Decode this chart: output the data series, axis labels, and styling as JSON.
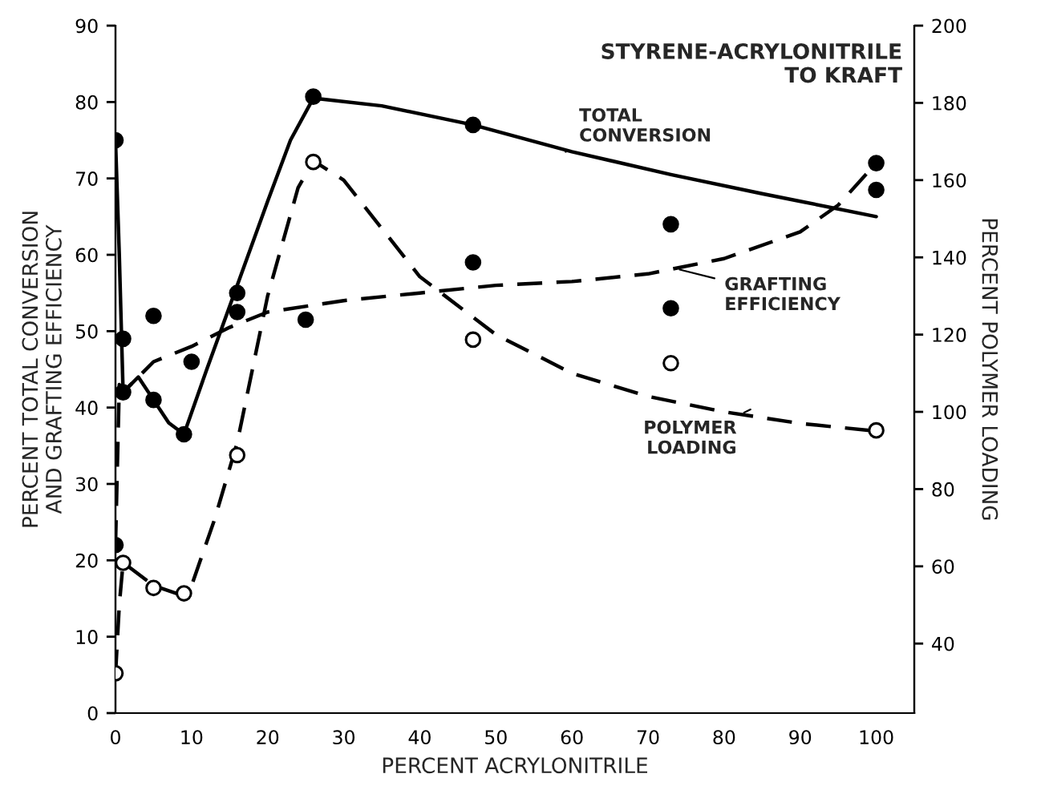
{
  "chart_data": {
    "type": "scatter",
    "title": "STYRENE-ACRYLONITRILE\nTO KRAFT",
    "xlabel": "PERCENT ACRYLONITRILE",
    "ylabel": "PERCENT TOTAL CONVERSION\nAND GRAFTING EFFICIENCY",
    "y2label": "PERCENT POLYMER LOADING",
    "xlim": [
      0,
      105
    ],
    "xticks": [
      0,
      10,
      20,
      30,
      40,
      50,
      60,
      70,
      80,
      90,
      100
    ],
    "ylim": [
      0,
      90
    ],
    "yticks": [
      0,
      10,
      20,
      30,
      40,
      50,
      60,
      70,
      80,
      90
    ],
    "y2lim": [
      22,
      200
    ],
    "y2ticks": [
      40,
      60,
      80,
      100,
      120,
      140,
      160,
      180,
      200
    ],
    "grid": false,
    "legend": false,
    "series": [
      {
        "type": "line",
        "color": "#000000",
        "line_style": "solid",
        "marker": "none",
        "x": [
          0,
          0.5,
          1,
          3,
          5,
          7,
          9,
          12,
          16,
          20,
          23,
          26,
          35,
          47,
          60,
          73,
          85,
          100
        ],
        "values": [
          75,
          60,
          42,
          44,
          41,
          38,
          36.5,
          45,
          56,
          67,
          75,
          80.5,
          79.5,
          77,
          73.5,
          70.5,
          68,
          65
        ]
      },
      {
        "type": "line",
        "color": "#000000",
        "line_style": "dashed",
        "marker": "none",
        "x": [
          0,
          0.5,
          1,
          5,
          10,
          15,
          20,
          30,
          40,
          50,
          60,
          70,
          80,
          90,
          95,
          100
        ],
        "values": [
          22,
          43,
          42,
          46,
          48,
          50.5,
          52.5,
          54,
          55,
          56,
          56.5,
          57.5,
          59.5,
          63,
          66.5,
          72
        ]
      },
      {
        "type": "line",
        "axis": "y2",
        "color": "#000000",
        "line_style": "dashed",
        "marker": "none",
        "x": [
          0,
          0.5,
          1,
          5,
          8,
          10,
          13,
          16,
          20,
          24,
          26,
          30,
          40,
          50,
          60,
          70,
          80,
          90,
          100
        ],
        "values": [
          32,
          50,
          61,
          55,
          53,
          55,
          72,
          92,
          130,
          158,
          165,
          160,
          135,
          120,
          110,
          104,
          100,
          97,
          95
        ]
      },
      {
        "color": "#000000",
        "marker": "circle",
        "x": [
          0,
          0,
          1,
          1,
          5,
          5,
          9,
          10,
          16,
          16,
          25,
          26,
          47,
          47,
          73,
          73,
          100,
          100
        ],
        "values": [
          75,
          22,
          49,
          42,
          52,
          41,
          36.5,
          46,
          55,
          52.5,
          51.5,
          80.7,
          77,
          59,
          64,
          53,
          72,
          68.5
        ]
      },
      {
        "axis": "y2",
        "color": "#ffffff",
        "marker": "circle",
        "x": [
          0,
          1,
          5,
          9,
          16,
          26,
          47,
          73,
          100
        ],
        "values": [
          32.3,
          60.9,
          54.4,
          53,
          88.8,
          164.7,
          118.7,
          112.6,
          95.2
        ]
      }
    ],
    "annotations": [
      {
        "text": "TOTAL\nCONVERSION",
        "x": 58.6,
        "y": 73.3
      },
      {
        "text": "GRAFTING\nEFFICIENCY",
        "x": 73.6,
        "y": 58.2
      },
      {
        "text": "POLYMER\nLOADING",
        "x": 84,
        "y": 40
      }
    ]
  }
}
